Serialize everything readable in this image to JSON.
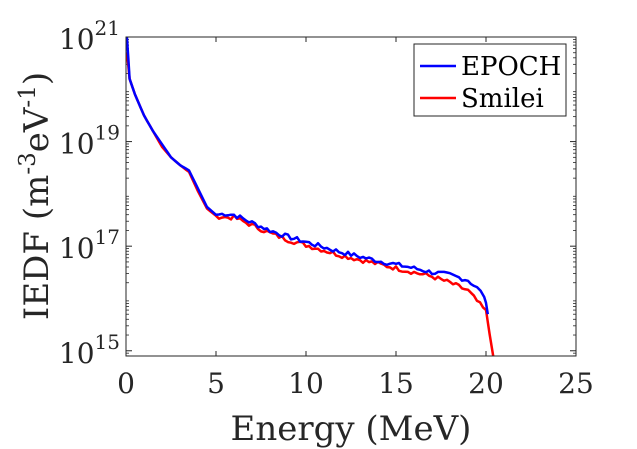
{
  "chart_data": {
    "type": "line",
    "title": "",
    "xlabel": "Energy (MeV)",
    "ylabel_main": "IEDF (m",
    "ylabel_sup1": "-3",
    "ylabel_mid": "eV",
    "ylabel_sup2": "-1",
    "ylabel_end": ")",
    "xlim": [
      0,
      25
    ],
    "ylim_log10": [
      14.9,
      21.0
    ],
    "xticks": [
      0,
      5,
      10,
      15,
      20,
      25
    ],
    "xtick_labels": [
      "0",
      "5",
      "10",
      "15",
      "20",
      "25"
    ],
    "yticks_log10": [
      15,
      17,
      19,
      21
    ],
    "ytick_base": "10",
    "ytick_exponents": [
      "15",
      "17",
      "19",
      "21"
    ],
    "legend": {
      "position": "top-right",
      "entries": [
        "EPOCH",
        "Smilei"
      ]
    },
    "series": [
      {
        "name": "EPOCH",
        "color": "#0000ff",
        "x": [
          0.05,
          0.2,
          0.5,
          1.0,
          1.5,
          2.0,
          2.5,
          3.0,
          3.5,
          4.0,
          4.5,
          5.0,
          5.5,
          6.0,
          7.0,
          8.0,
          9.0,
          10.0,
          11.0,
          12.0,
          13.0,
          14.0,
          15.0,
          16.0,
          17.0,
          18.0,
          19.0,
          19.5,
          19.9,
          20.1
        ],
        "log10_y": [
          21.0,
          20.2,
          19.9,
          19.5,
          19.2,
          18.95,
          18.7,
          18.55,
          18.45,
          18.1,
          17.75,
          17.6,
          17.62,
          17.6,
          17.45,
          17.3,
          17.18,
          17.08,
          16.98,
          16.88,
          16.8,
          16.72,
          16.65,
          16.58,
          16.5,
          16.45,
          16.35,
          16.2,
          16.05,
          15.7
        ]
      },
      {
        "name": "Smilei",
        "color": "#ff0000",
        "x": [
          0.05,
          0.2,
          0.5,
          1.0,
          1.5,
          2.0,
          2.5,
          3.0,
          3.5,
          4.0,
          4.5,
          5.0,
          5.5,
          6.0,
          7.0,
          8.0,
          9.0,
          10.0,
          11.0,
          12.0,
          13.0,
          14.0,
          15.0,
          16.0,
          17.0,
          18.0,
          19.0,
          19.5,
          20.0,
          20.4
        ],
        "log10_y": [
          20.7,
          20.2,
          19.9,
          19.5,
          19.2,
          18.9,
          18.7,
          18.55,
          18.42,
          18.05,
          17.72,
          17.58,
          17.55,
          17.55,
          17.4,
          17.25,
          17.12,
          17.02,
          16.92,
          16.82,
          16.74,
          16.66,
          16.58,
          16.5,
          16.42,
          16.3,
          16.15,
          15.95,
          15.75,
          14.9
        ]
      }
    ]
  }
}
